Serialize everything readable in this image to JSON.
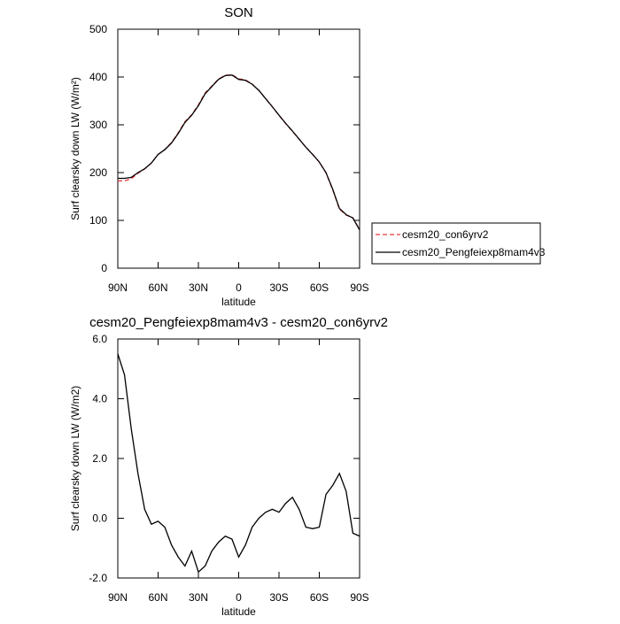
{
  "chart_data": [
    {
      "type": "line",
      "title": "SON",
      "x_label": "latitude",
      "y_label": "Surf clearsky down LW (W/m²)",
      "x": [
        90,
        85,
        80,
        75,
        70,
        65,
        60,
        55,
        50,
        45,
        40,
        35,
        30,
        25,
        20,
        15,
        10,
        5,
        0,
        -5,
        -10,
        -15,
        -20,
        -25,
        -30,
        -35,
        -40,
        -45,
        -50,
        -55,
        -60,
        -65,
        -70,
        -75,
        -80,
        -85,
        -90
      ],
      "xlim": [
        90,
        -90
      ],
      "xticks": [
        {
          "value": 90,
          "label": "90N"
        },
        {
          "value": 60,
          "label": "60N"
        },
        {
          "value": 30,
          "label": "30N"
        },
        0,
        {
          "value": -30,
          "label": "30S"
        },
        {
          "value": -60,
          "label": "60S"
        },
        {
          "value": -90,
          "label": "90S"
        }
      ],
      "ylim": [
        0,
        500
      ],
      "yticks": [
        0,
        100,
        200,
        300,
        400,
        500
      ],
      "legend": "outside-right",
      "series": [
        {
          "name": "cesm20_con6yrv2",
          "color": "#e8383d",
          "line_style": "dashed",
          "values": [
            182.5,
            183,
            187,
            198.5,
            207.7,
            220.2,
            238.1,
            248.3,
            262.9,
            283.3,
            306.6,
            321.1,
            341.8,
            366.6,
            381.1,
            395.8,
            403.6,
            404.7,
            396.3,
            393.9,
            385.3,
            372,
            354.8,
            337.7,
            319.8,
            302.5,
            286.3,
            269.7,
            253.3,
            238.4,
            222.3,
            199.2,
            163.9,
            123.5,
            111.1,
            105.5,
            80.6
          ]
        },
        {
          "name": "cesm20_Pengfeiexp8mam4v3",
          "color": "#000000",
          "line_style": "solid",
          "values": [
            188,
            188,
            190,
            200,
            208,
            220,
            238,
            248,
            262,
            282,
            305,
            320,
            340,
            365,
            380,
            395,
            403,
            404,
            395,
            393,
            385,
            372,
            355,
            338,
            320,
            303,
            287,
            270,
            253,
            238,
            222,
            200,
            165,
            125,
            112,
            105,
            80
          ]
        }
      ]
    },
    {
      "type": "line",
      "title": "cesm20_Pengfeiexp8mam4v3 - cesm20_con6yrv2",
      "x_label": "latitude",
      "y_label": "Surf clearsky down LW (W/m2)",
      "x": [
        90,
        85,
        80,
        75,
        70,
        65,
        60,
        55,
        50,
        45,
        40,
        35,
        30,
        25,
        20,
        15,
        10,
        5,
        0,
        -5,
        -10,
        -15,
        -20,
        -25,
        -30,
        -35,
        -40,
        -45,
        -50,
        -55,
        -60,
        -65,
        -70,
        -75,
        -80,
        -85,
        -90
      ],
      "xlim": [
        90,
        -90
      ],
      "xticks": [
        {
          "value": 90,
          "label": "90N"
        },
        {
          "value": 60,
          "label": "60N"
        },
        {
          "value": 30,
          "label": "30N"
        },
        0,
        {
          "value": -30,
          "label": "30S"
        },
        {
          "value": -60,
          "label": "60S"
        },
        {
          "value": -90,
          "label": "90S"
        }
      ],
      "ylim": [
        -2,
        6
      ],
      "yticks": [
        {
          "value": -2,
          "label": "-2.0"
        },
        {
          "value": 0,
          "label": "0.0"
        },
        {
          "value": 2,
          "label": "2.0"
        },
        {
          "value": 4,
          "label": "4.0"
        },
        {
          "value": 6,
          "label": "6.0"
        }
      ],
      "series": [
        {
          "color": "#000000",
          "line_style": "solid",
          "values": [
            5.5,
            4.8,
            3,
            1.5,
            0.3,
            -0.2,
            -0.1,
            -0.3,
            -0.9,
            -1.3,
            -1.6,
            -1.1,
            -1.8,
            -1.6,
            -1.1,
            -0.8,
            -0.6,
            -0.7,
            -1.3,
            -0.9,
            -0.3,
            0,
            0.2,
            0.3,
            0.2,
            0.5,
            0.7,
            0.3,
            -0.3,
            -0.35,
            -0.3,
            0.8,
            1.1,
            1.5,
            0.9,
            -0.5,
            -0.6
          ]
        }
      ]
    }
  ]
}
